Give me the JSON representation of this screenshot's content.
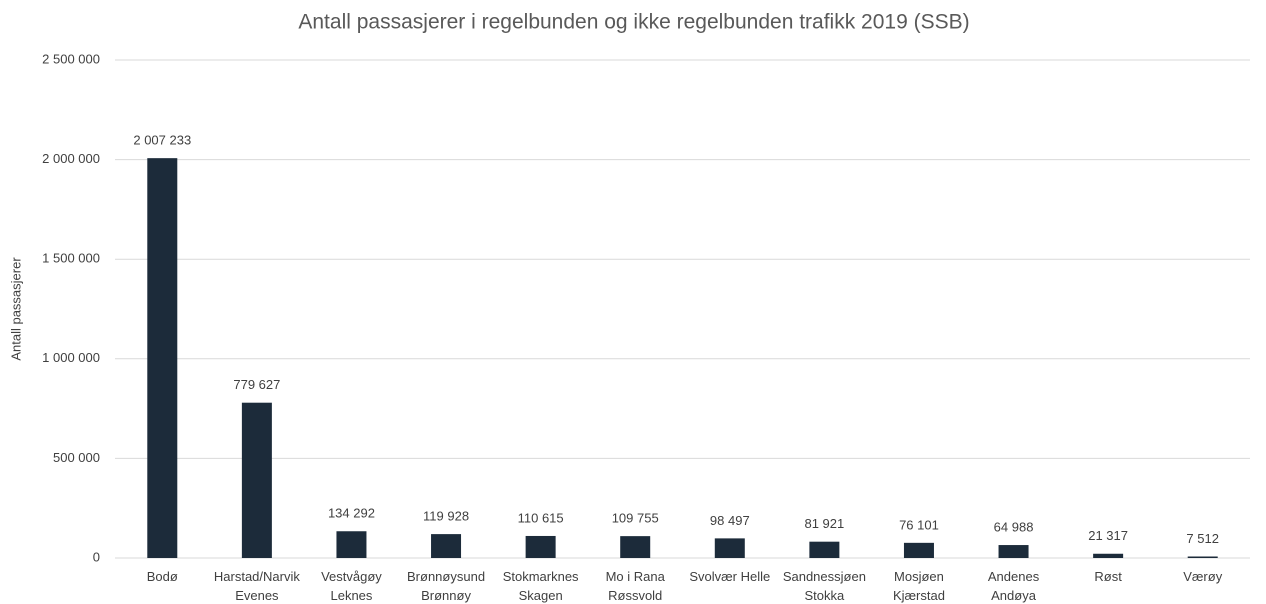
{
  "chart_data": {
    "type": "bar",
    "title": "Antall passasjerer i regelbunden og ikke regelbunden trafikk 2019 (SSB)",
    "y_label": "Antall passasjerer",
    "categories": [
      "Bodø",
      "Harstad/Narvik\nEvenes",
      "Vestvågøy\nLeknes",
      "Brønnøysund\nBrønnøy",
      "Stokmarknes\nSkagen",
      "Mo i Rana\nRøssvold",
      "Svolvær Helle",
      "Sandnessjøen\nStokka",
      "Mosjøen\nKjærstad",
      "Andenes\nAndøya",
      "Røst",
      "Værøy"
    ],
    "values": [
      2007233,
      779627,
      134292,
      119928,
      110615,
      109755,
      98497,
      81921,
      76101,
      64988,
      21317,
      7512
    ],
    "value_labels": [
      "2 007 233",
      "779 627",
      "134 292",
      "119 928",
      "110 615",
      "109 755",
      "98 497",
      "81 921",
      "76 101",
      "64 988",
      "21 317",
      "7 512"
    ],
    "color": "#1c2b3a",
    "ylim": [
      0,
      2500000
    ],
    "yticks": [
      0,
      {
        "value": 500000,
        "label": "500 000"
      },
      {
        "value": 1000000,
        "label": "1 000 000"
      },
      {
        "value": 1500000,
        "label": "1 500 000"
      },
      {
        "value": 2000000,
        "label": "2 000 000"
      },
      {
        "value": 2500000,
        "label": "2 500 000"
      }
    ],
    "grid": true
  }
}
